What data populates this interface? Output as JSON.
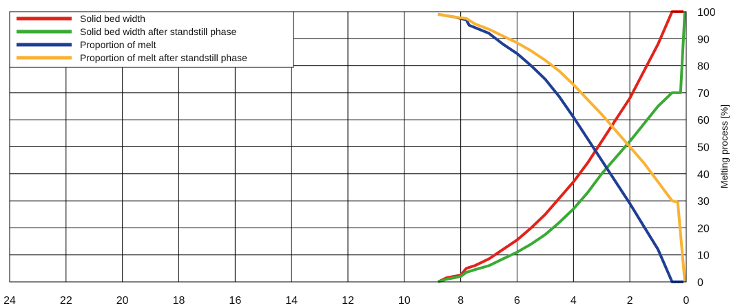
{
  "chart_data": {
    "type": "line",
    "title": "",
    "xlabel": "",
    "ylabel": "Melting process [%]",
    "xlim": [
      24,
      0
    ],
    "ylim": [
      0,
      100
    ],
    "x_ticks": [
      24,
      22,
      20,
      18,
      16,
      14,
      12,
      10,
      8,
      6,
      4,
      2,
      0
    ],
    "y_ticks": [
      0,
      10,
      20,
      30,
      40,
      50,
      60,
      70,
      80,
      90,
      100
    ],
    "grid": true,
    "legend_position": "top-left",
    "series": [
      {
        "name": "Solid bed width",
        "color": "#e2231a",
        "points": [
          [
            8.8,
            0
          ],
          [
            8.5,
            1.5
          ],
          [
            8.0,
            2.5
          ],
          [
            7.8,
            5
          ],
          [
            7.5,
            6
          ],
          [
            7.0,
            8.5
          ],
          [
            6.5,
            12
          ],
          [
            6.0,
            15.5
          ],
          [
            5.5,
            20
          ],
          [
            5.0,
            25
          ],
          [
            4.5,
            31
          ],
          [
            4.0,
            37
          ],
          [
            3.5,
            44
          ],
          [
            3.0,
            52
          ],
          [
            2.5,
            60
          ],
          [
            2.0,
            68
          ],
          [
            1.5,
            78
          ],
          [
            1.0,
            88
          ],
          [
            0.5,
            100
          ],
          [
            0.1,
            100
          ]
        ]
      },
      {
        "name": "Solid bed width after standstill phase",
        "color": "#3aaa35",
        "points": [
          [
            8.8,
            0
          ],
          [
            8.5,
            1
          ],
          [
            8.0,
            2
          ],
          [
            7.8,
            3.5
          ],
          [
            7.5,
            4.5
          ],
          [
            7.0,
            6
          ],
          [
            6.5,
            8.5
          ],
          [
            6.0,
            11
          ],
          [
            5.5,
            14
          ],
          [
            5.0,
            17.5
          ],
          [
            4.5,
            22
          ],
          [
            4.0,
            27
          ],
          [
            3.5,
            33
          ],
          [
            3.0,
            40
          ],
          [
            2.5,
            46
          ],
          [
            2.0,
            52
          ],
          [
            1.5,
            58.5
          ],
          [
            1.0,
            65
          ],
          [
            0.5,
            70
          ],
          [
            0.2,
            70
          ],
          [
            0.05,
            100
          ]
        ]
      },
      {
        "name": "Proportion of melt",
        "color": "#1f3f94",
        "points": [
          [
            8.8,
            99
          ],
          [
            8.2,
            98
          ],
          [
            7.8,
            97
          ],
          [
            7.7,
            95
          ],
          [
            7.0,
            92
          ],
          [
            6.5,
            88
          ],
          [
            6.0,
            84.5
          ],
          [
            5.5,
            80
          ],
          [
            5.0,
            75
          ],
          [
            4.5,
            68.5
          ],
          [
            4.0,
            61
          ],
          [
            3.5,
            53
          ],
          [
            3.0,
            45
          ],
          [
            2.5,
            37
          ],
          [
            2.0,
            29
          ],
          [
            1.5,
            20.5
          ],
          [
            1.0,
            12
          ],
          [
            0.5,
            0
          ],
          [
            0.1,
            0
          ]
        ]
      },
      {
        "name": "Proportion of melt after standstill phase",
        "color": "#f9b233",
        "points": [
          [
            8.8,
            99
          ],
          [
            8.2,
            98
          ],
          [
            7.8,
            97.5
          ],
          [
            7.5,
            95.5
          ],
          [
            7.0,
            93.5
          ],
          [
            6.5,
            91
          ],
          [
            6.0,
            88.5
          ],
          [
            5.5,
            85.5
          ],
          [
            5.0,
            82
          ],
          [
            4.5,
            78
          ],
          [
            4.0,
            73
          ],
          [
            3.5,
            67.5
          ],
          [
            3.0,
            62
          ],
          [
            2.5,
            56
          ],
          [
            2.0,
            50
          ],
          [
            1.5,
            44
          ],
          [
            1.0,
            37
          ],
          [
            0.5,
            30
          ],
          [
            0.3,
            29.5
          ],
          [
            0.05,
            0
          ]
        ]
      }
    ]
  }
}
